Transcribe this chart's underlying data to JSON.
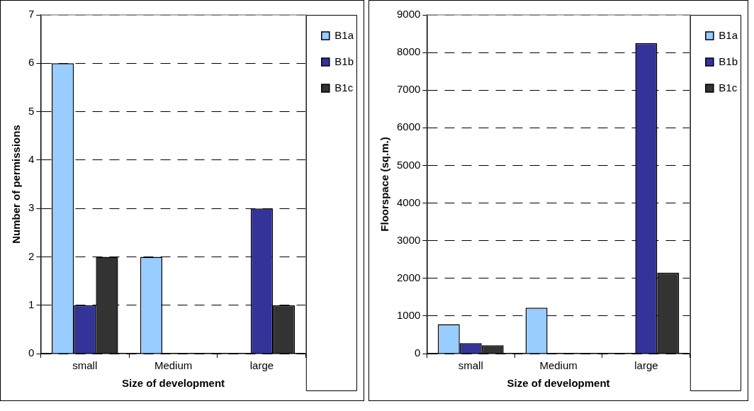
{
  "chart_data": [
    {
      "type": "bar",
      "xlabel": "Size of development",
      "ylabel": "Number of permissions",
      "categories": [
        "small",
        "Medium",
        "large"
      ],
      "series": [
        {
          "name": "B1a",
          "color": "#99ccff",
          "values": [
            6,
            2,
            0
          ]
        },
        {
          "name": "B1b",
          "color": "#333399",
          "values": [
            1,
            0,
            3
          ]
        },
        {
          "name": "B1c",
          "color": "#333333",
          "values": [
            2,
            0,
            1
          ]
        }
      ],
      "ylim": [
        0,
        7
      ],
      "yticks": [
        0,
        1,
        2,
        3,
        4,
        5,
        6,
        7
      ],
      "grid": "y",
      "legend": "top right"
    },
    {
      "type": "bar",
      "xlabel": "Size of development",
      "ylabel": "Floorspace (sq.m.)",
      "categories": [
        "small",
        "Medium",
        "large"
      ],
      "series": [
        {
          "name": "B1a",
          "color": "#99ccff",
          "values": [
            780,
            1220,
            0
          ]
        },
        {
          "name": "B1b",
          "color": "#333399",
          "values": [
            280,
            0,
            8250
          ]
        },
        {
          "name": "B1c",
          "color": "#333333",
          "values": [
            220,
            0,
            2150
          ]
        }
      ],
      "ylim": [
        0,
        9000
      ],
      "yticks": [
        0,
        1000,
        2000,
        3000,
        4000,
        5000,
        6000,
        7000,
        8000,
        9000
      ],
      "grid": "y",
      "legend": "top right"
    }
  ]
}
